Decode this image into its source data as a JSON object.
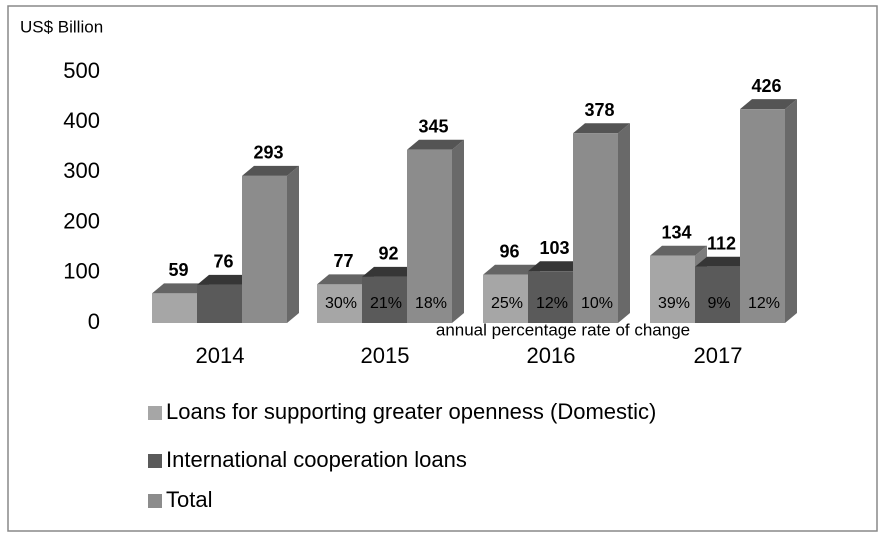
{
  "chart_data": {
    "type": "bar3d",
    "axis_label": "US$ Billion",
    "annotation": "annual percentage rate of change",
    "categories": [
      "2014",
      "2015",
      "2016",
      "2017"
    ],
    "series": [
      {
        "name": "Loans for supporting greater openness (Domestic)",
        "color": "#a6a6a6",
        "values": [
          59,
          77,
          96,
          134
        ],
        "change_labels": [
          null,
          "30%",
          "25%",
          "39%"
        ]
      },
      {
        "name": "International cooperation loans",
        "color": "#5a5a5a",
        "values": [
          76,
          92,
          103,
          112
        ],
        "change_labels": [
          null,
          "21%",
          "12%",
          "9%"
        ]
      },
      {
        "name": "Total",
        "color": "#8c8c8c",
        "values": [
          293,
          345,
          378,
          426
        ],
        "change_labels": [
          null,
          "18%",
          "10%",
          "12%"
        ]
      }
    ],
    "ylim": [
      0,
      500
    ],
    "yticks": [
      0,
      100,
      200,
      300,
      400,
      500
    ]
  }
}
